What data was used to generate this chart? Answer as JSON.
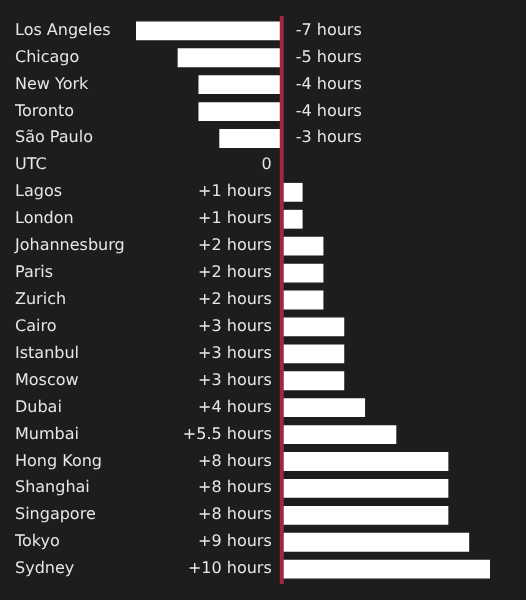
{
  "chart_data": {
    "type": "bar",
    "orientation": "horizontal",
    "categories": [
      "Los Angeles",
      "Chicago",
      "New York",
      "Toronto",
      "São Paulo",
      "UTC",
      "Lagos",
      "London",
      "Johannesburg",
      "Paris",
      "Zurich",
      "Cairo",
      "Istanbul",
      "Moscow",
      "Dubai",
      "Mumbai",
      "Hong Kong",
      "Shanghai",
      "Singapore",
      "Tokyo",
      "Sydney"
    ],
    "values": [
      -7,
      -5,
      -4,
      -4,
      -3,
      0,
      1,
      1,
      2,
      2,
      2,
      3,
      3,
      3,
      4,
      5.5,
      8,
      8,
      8,
      9,
      10
    ],
    "value_labels": [
      "-7 hours",
      "-5 hours",
      "-4 hours",
      "-4 hours",
      "-3 hours",
      "0",
      "+1 hours",
      "+1 hours",
      "+2 hours",
      "+2 hours",
      "+2 hours",
      "+3 hours",
      "+3 hours",
      "+3 hours",
      "+4 hours",
      "+5.5 hours",
      "+8 hours",
      "+8 hours",
      "+8 hours",
      "+9 hours",
      "+10 hours"
    ],
    "color": "#ffffff",
    "ref_lines": [
      {
        "axis": "x",
        "value": 0,
        "color": "#a3263f"
      }
    ],
    "tick_labels": "y",
    "grid": false
  }
}
